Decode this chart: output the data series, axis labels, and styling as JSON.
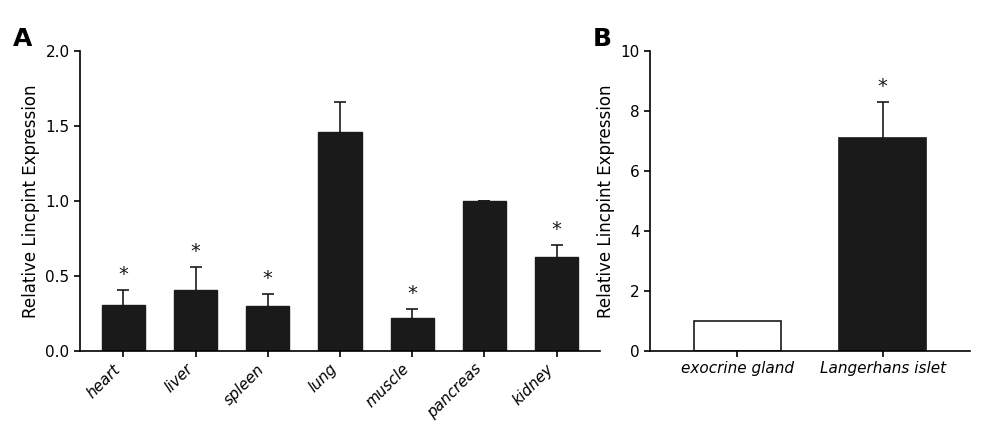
{
  "panel_A": {
    "categories": [
      "heart",
      "liver",
      "spleen",
      "lung",
      "muscle",
      "pancreas",
      "kidney"
    ],
    "values": [
      0.31,
      0.41,
      0.3,
      1.46,
      0.22,
      1.0,
      0.63
    ],
    "errors": [
      0.1,
      0.15,
      0.08,
      0.2,
      0.06,
      0.0,
      0.08
    ],
    "bar_color": "#1a1a1a",
    "star_flags": [
      true,
      true,
      true,
      false,
      true,
      false,
      true
    ],
    "ylim": [
      0,
      2.0
    ],
    "yticks": [
      0.0,
      0.5,
      1.0,
      1.5,
      2.0
    ],
    "ylabel": "Relative Lincpint Expression",
    "panel_label": "A"
  },
  "panel_B": {
    "categories": [
      "exocrine gland",
      "Langerhans islet"
    ],
    "values": [
      1.0,
      7.1
    ],
    "errors": [
      0.0,
      1.2
    ],
    "bar_colors": [
      "#ffffff",
      "#1a1a1a"
    ],
    "bar_edge_colors": [
      "#1a1a1a",
      "#1a1a1a"
    ],
    "star_flags": [
      false,
      true
    ],
    "ylim": [
      0,
      10
    ],
    "yticks": [
      0,
      2,
      4,
      6,
      8,
      10
    ],
    "ylabel": "Relative Lincpint Expression",
    "panel_label": "B"
  },
  "background_color": "#ffffff",
  "tick_label_fontsize": 11,
  "axis_label_fontsize": 12,
  "panel_label_fontsize": 18,
  "star_fontsize": 14
}
